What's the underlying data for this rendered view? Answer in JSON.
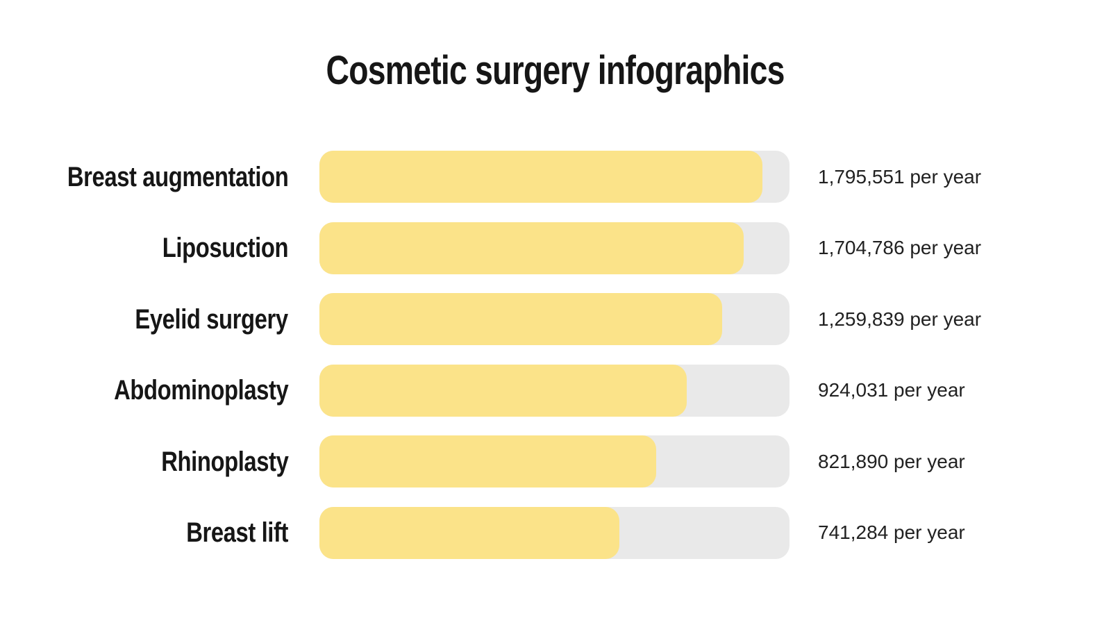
{
  "title": "Cosmetic surgery infographics",
  "colors": {
    "background": "#FFFFFF",
    "bar_fill": "#FBE389",
    "bar_track": "#E9E9E9",
    "heading_text": "#161616",
    "value_text": "#212121"
  },
  "chart_data": {
    "type": "bar",
    "orientation": "horizontal",
    "title": "Cosmetic surgery infographics",
    "categories": [
      "Breast augmentation",
      "Liposuction",
      "Eyelid surgery",
      "Abdominoplasty",
      "Rhinoplasty",
      "Breast lift"
    ],
    "values": [
      1795551,
      1704786,
      1259839,
      924031,
      821890,
      741284
    ],
    "value_labels": [
      "1,795,551 per year",
      "1,704,786 per year",
      "1,259,839 per year",
      "924,031 per year",
      "821,890 per year",
      "741,284 per year"
    ],
    "unit": "per year",
    "fill_percents": [
      94.2,
      90.3,
      85.7,
      78.1,
      71.6,
      63.8
    ],
    "legend": "none",
    "grid": false,
    "axes_shown": false
  }
}
